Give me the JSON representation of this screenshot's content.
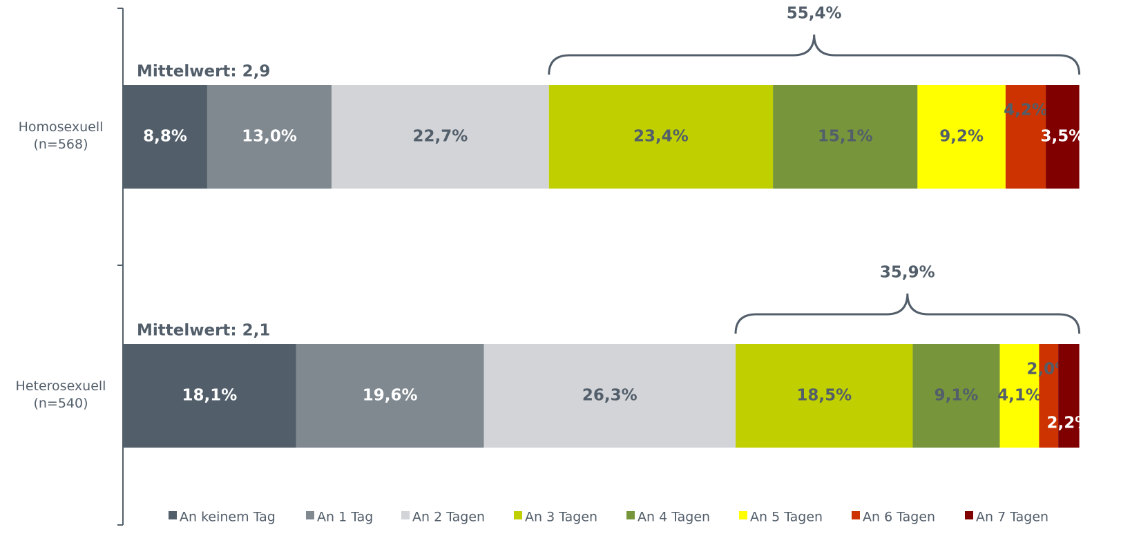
{
  "chart_data": {
    "type": "stacked_bar_horizontal",
    "categories": [
      "Homosexuell\n(n=568)",
      "Heterosexuell\n(n=540)"
    ],
    "xlim": [
      0,
      100
    ],
    "series": [
      {
        "name": "An keinem Tag",
        "color": "#525e6a",
        "label_color": "#ffffff",
        "values": [
          8.8,
          18.1
        ],
        "value_labels": [
          "8,8%",
          "18,1%"
        ]
      },
      {
        "name": "An 1 Tag",
        "color": "#808890",
        "label_color": "#ffffff",
        "values": [
          13.0,
          19.6
        ],
        "value_labels": [
          "13,0%",
          "19,6%"
        ]
      },
      {
        "name": "An 2 Tagen",
        "color": "#d2d4d8",
        "label_color": "#525e6a",
        "values": [
          22.7,
          26.3
        ],
        "value_labels": [
          "22,7%",
          "26,3%"
        ]
      },
      {
        "name": "An 3 Tagen",
        "color": "#bfcf00",
        "label_color": "#525e6a",
        "values": [
          23.4,
          18.5
        ],
        "value_labels": [
          "23,4%",
          "18,5%"
        ]
      },
      {
        "name": "An 4 Tagen",
        "color": "#77963c",
        "label_color": "#525e6a",
        "values": [
          15.1,
          9.1
        ],
        "value_labels": [
          "15,1%",
          "9,1%"
        ]
      },
      {
        "name": "An 5 Tagen",
        "color": "#ffff00",
        "label_color": "#525e6a",
        "values": [
          9.2,
          4.1
        ],
        "value_labels": [
          "9,2%",
          "4,1%"
        ]
      },
      {
        "name": "An 6 Tagen",
        "color": "#cc3300",
        "label_color": "#525e6a",
        "values": [
          4.2,
          2.0
        ],
        "value_labels": [
          "4,2%",
          "2,0%"
        ]
      },
      {
        "name": "An 7 Tagen",
        "color": "#800000",
        "label_color": "#ffffff",
        "values": [
          3.5,
          2.2
        ],
        "value_labels": [
          "3,5%",
          "2,2%"
        ]
      }
    ],
    "mean_labels": [
      "Mittelwert: 2,9",
      "Mittelwert: 2,1"
    ],
    "brackets": [
      {
        "value": 55.4,
        "label": "55,4%"
      },
      {
        "value": 35.9,
        "label": "35,9%"
      }
    ]
  }
}
